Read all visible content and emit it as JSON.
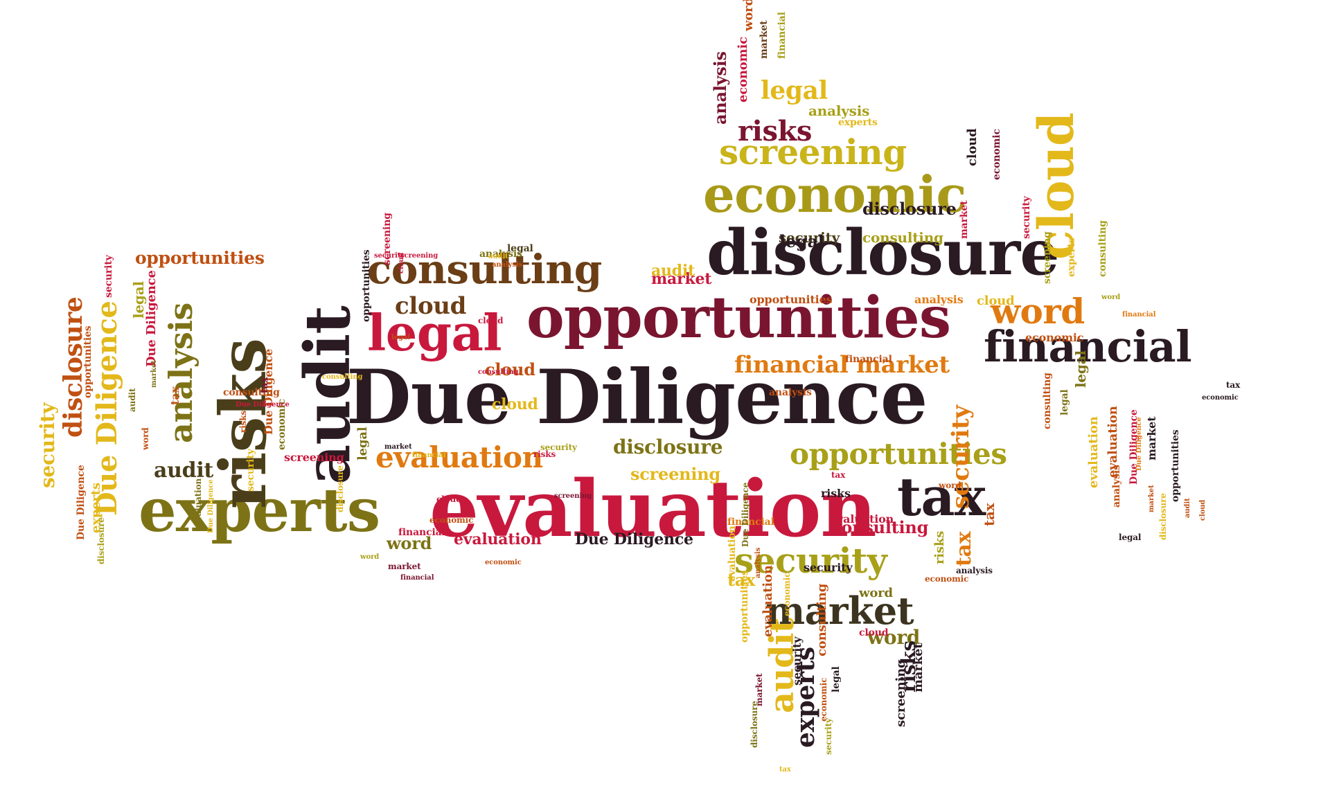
{
  "image": {
    "type": "word cloud",
    "shape": "arrow pointing left",
    "background": "#ffffff",
    "palette": {
      "black": "#2a1a22",
      "crimson": "#c8193d",
      "maroon": "#7a1530",
      "orange": "#e07a10",
      "mustard": "#c9a018",
      "olive": "#7d7316",
      "brown": "#7a4418",
      "yellow": "#e3b81a",
      "dark_olive": "#4a3e1a"
    }
  },
  "words": [
    {
      "text": "Due Diligence",
      "color": "#2a1a22"
    },
    {
      "text": "evaluation",
      "color": "#c8193d"
    },
    {
      "text": "opportunities",
      "color": "#7a1530"
    },
    {
      "text": "disclosure",
      "color": "#2a1a22"
    },
    {
      "text": "economic",
      "color": "#a89a18"
    },
    {
      "text": "screening",
      "color": "#c9b41a"
    },
    {
      "text": "financial",
      "color": "#2a1a22"
    },
    {
      "text": "legal",
      "color": "#c8193d"
    },
    {
      "text": "consulting",
      "color": "#6b3e16"
    },
    {
      "text": "experts",
      "color": "#7d7316"
    },
    {
      "text": "tax",
      "color": "#2a1a22"
    },
    {
      "text": "security",
      "color": "#a8a018"
    },
    {
      "text": "market",
      "color": "#3c3420"
    },
    {
      "text": "word",
      "color": "#e07a10"
    },
    {
      "text": "financial market",
      "color": "#e07a10"
    },
    {
      "text": "audit",
      "color": "#2a1a22"
    },
    {
      "text": "risks",
      "color": "#4a3e1a"
    },
    {
      "text": "analysis",
      "color": "#7d7316"
    },
    {
      "text": "Due Diligence",
      "color": "#e3b81a"
    },
    {
      "text": "disclosure",
      "color": "#c05012"
    },
    {
      "text": "security",
      "color": "#e3b81a"
    },
    {
      "text": "opportunities",
      "color": "#c05012"
    },
    {
      "text": "evaluation",
      "color": "#e07a10"
    },
    {
      "text": "opportunities",
      "color": "#a8a018"
    },
    {
      "text": "legal",
      "color": "#e3b81a"
    },
    {
      "text": "risks",
      "color": "#7a1530"
    },
    {
      "text": "analysis",
      "color": "#7a1530"
    },
    {
      "text": "analysis",
      "color": "#a8a018"
    },
    {
      "text": "economic",
      "color": "#c8193d"
    },
    {
      "text": "word",
      "color": "#c05012"
    },
    {
      "text": "market",
      "color": "#6b3e16"
    },
    {
      "text": "financial",
      "color": "#a8a018"
    },
    {
      "text": "experts",
      "color": "#e3b81a"
    },
    {
      "text": "cloud",
      "color": "#e3b81a"
    },
    {
      "text": "cloud",
      "color": "#6b3e16"
    },
    {
      "text": "cloud",
      "color": "#c05012"
    },
    {
      "text": "market",
      "color": "#c8193d"
    },
    {
      "text": "audit",
      "color": "#e3b81a"
    },
    {
      "text": "audit",
      "color": "#4a3e1a"
    },
    {
      "text": "audit",
      "color": "#e3b81a"
    },
    {
      "text": "disclosure",
      "color": "#7d7316"
    },
    {
      "text": "screening",
      "color": "#e3b81a"
    },
    {
      "text": "evaluation",
      "color": "#c8193d"
    },
    {
      "text": "Due Diligence",
      "color": "#2a1a22"
    },
    {
      "text": "consulting",
      "color": "#c8193d"
    },
    {
      "text": "security",
      "color": "#e07a10"
    },
    {
      "text": "word",
      "color": "#7d7316"
    },
    {
      "text": "risks",
      "color": "#2a1a22"
    },
    {
      "text": "tax",
      "color": "#e07a10"
    },
    {
      "text": "tax",
      "color": "#e3b81a"
    },
    {
      "text": "tax",
      "color": "#c05012"
    },
    {
      "text": "experts",
      "color": "#2a1a22"
    },
    {
      "text": "screening",
      "color": "#2a1a22"
    },
    {
      "text": "market",
      "color": "#2a1a22"
    },
    {
      "text": "word",
      "color": "#7d7316"
    },
    {
      "text": "risks",
      "color": "#a8a018"
    },
    {
      "text": "cloud",
      "color": "#e3b81a"
    },
    {
      "text": "consulting",
      "color": "#a8a018"
    },
    {
      "text": "security",
      "color": "#4a3e1a"
    },
    {
      "text": "analysis",
      "color": "#c05012"
    },
    {
      "text": "opportunities",
      "color": "#c05012"
    },
    {
      "text": "analysis",
      "color": "#e07a10"
    },
    {
      "text": "screening",
      "color": "#a8a018"
    },
    {
      "text": "opportunities",
      "color": "#2a1a22"
    },
    {
      "text": "legal",
      "color": "#4a3e1a"
    },
    {
      "text": "analysis",
      "color": "#7d7316"
    },
    {
      "text": "security",
      "color": "#c8193d"
    },
    {
      "text": "screening",
      "color": "#c8193d"
    },
    {
      "text": "cloud",
      "color": "#e3b81a"
    },
    {
      "text": "financial",
      "color": "#c05012"
    },
    {
      "text": "economic",
      "color": "#c05012"
    },
    {
      "text": "consulting",
      "color": "#c05012"
    },
    {
      "text": "legal",
      "color": "#7d7316"
    },
    {
      "text": "disclosure",
      "color": "#2a1a22"
    },
    {
      "text": "legal",
      "color": "#2a1a22"
    },
    {
      "text": "cloud",
      "color": "#2a1a22"
    },
    {
      "text": "economic",
      "color": "#7a1530"
    },
    {
      "text": "security",
      "color": "#c8193d"
    },
    {
      "text": "experts",
      "color": "#e3b81a"
    },
    {
      "text": "consulting",
      "color": "#a8a018"
    },
    {
      "text": "market",
      "color": "#c8193d"
    },
    {
      "text": "word",
      "color": "#a8a018"
    },
    {
      "text": "financial",
      "color": "#e07a10"
    },
    {
      "text": "legal",
      "color": "#7d7316"
    },
    {
      "text": "evaluation",
      "color": "#e3b81a"
    },
    {
      "text": "evaluation",
      "color": "#c05012"
    },
    {
      "text": "analysis",
      "color": "#c05012"
    },
    {
      "text": "market",
      "color": "#2a1a22"
    },
    {
      "text": "Due Diligence",
      "color": "#c8193d"
    },
    {
      "text": "economic",
      "color": "#2a1a22"
    },
    {
      "text": "tax",
      "color": "#2a1a22"
    },
    {
      "text": "opportunities",
      "color": "#2a1a22"
    },
    {
      "text": "audit",
      "color": "#c05012"
    },
    {
      "text": "cloud",
      "color": "#c05012"
    },
    {
      "text": "market",
      "color": "#c05012"
    },
    {
      "text": "Due Diligence",
      "color": "#e07a10"
    },
    {
      "text": "disclosure",
      "color": "#e3b81a"
    },
    {
      "text": "legal",
      "color": "#2a1a22"
    },
    {
      "text": "word",
      "color": "#c05012"
    },
    {
      "text": "risks",
      "color": "#2a1a22"
    },
    {
      "text": "tax",
      "color": "#c8193d"
    },
    {
      "text": "financial",
      "color": "#e07a10"
    },
    {
      "text": "security",
      "color": "#2a1a22"
    },
    {
      "text": "economic",
      "color": "#c05012"
    },
    {
      "text": "analysis",
      "color": "#2a1a22"
    },
    {
      "text": "word",
      "color": "#7d7316"
    },
    {
      "text": "cloud",
      "color": "#c8193d"
    },
    {
      "text": "evaluation",
      "color": "#c8193d"
    },
    {
      "text": "opportunities",
      "color": "#e3b81a"
    },
    {
      "text": "evaluation",
      "color": "#c05012"
    },
    {
      "text": "security",
      "color": "#2a1a22"
    },
    {
      "text": "consulting",
      "color": "#c05012"
    },
    {
      "text": "economic",
      "color": "#e3b81a"
    },
    {
      "text": "security",
      "color": "#a8a018"
    },
    {
      "text": "tax",
      "color": "#e3b81a"
    },
    {
      "text": "legal",
      "color": "#2a1a22"
    },
    {
      "text": "market",
      "color": "#7a1530"
    },
    {
      "text": "economic",
      "color": "#c05012"
    },
    {
      "text": "disclosure",
      "color": "#7d7316"
    },
    {
      "text": "evaluation",
      "color": "#e3b81a"
    },
    {
      "text": "Due Diligence",
      "color": "#7d7316"
    },
    {
      "text": "analysis",
      "color": "#c05012"
    },
    {
      "text": "cloud",
      "color": "#c8193d"
    },
    {
      "text": "market",
      "color": "#2a1a22"
    },
    {
      "text": "financial",
      "color": "#e3b81a"
    },
    {
      "text": "legal",
      "color": "#7d7316"
    },
    {
      "text": "disclosure",
      "color": "#e3b81a"
    },
    {
      "text": "economic",
      "color": "#7d7316"
    },
    {
      "text": "Due Diligence",
      "color": "#c05012"
    },
    {
      "text": "security",
      "color": "#e3b81a"
    },
    {
      "text": "consulting",
      "color": "#c05012"
    },
    {
      "text": "Due Diligence",
      "color": "#c8193d"
    },
    {
      "text": "tax",
      "color": "#c05012"
    },
    {
      "text": "Due Diligence",
      "color": "#c8193d"
    },
    {
      "text": "audit",
      "color": "#7d7316"
    },
    {
      "text": "word",
      "color": "#c05012"
    },
    {
      "text": "market",
      "color": "#7d7316"
    },
    {
      "text": "legal",
      "color": "#a8a018"
    },
    {
      "text": "security",
      "color": "#c8193d"
    },
    {
      "text": "opportunities",
      "color": "#c05012"
    },
    {
      "text": "experts",
      "color": "#e3b81a"
    },
    {
      "text": "disclosure",
      "color": "#a8a018"
    },
    {
      "text": "Due Diligence",
      "color": "#c05012"
    },
    {
      "text": "evaluation",
      "color": "#7d7316"
    },
    {
      "text": "Due Diligence",
      "color": "#e3b81a"
    },
    {
      "text": "risks",
      "color": "#c05012"
    },
    {
      "text": "tax",
      "color": "#7a1530"
    },
    {
      "text": "screening",
      "color": "#c8193d"
    },
    {
      "text": "consulting",
      "color": "#e3b81a"
    },
    {
      "text": "audit",
      "color": "#e3b81a"
    },
    {
      "text": "analysis",
      "color": "#c05012"
    },
    {
      "text": "cloud",
      "color": "#c8193d"
    },
    {
      "text": "screening",
      "color": "#c8193d"
    },
    {
      "text": "legal",
      "color": "#c05012"
    },
    {
      "text": "cloud",
      "color": "#c8193d"
    },
    {
      "text": "consulting",
      "color": "#c8193d"
    },
    {
      "text": "economic",
      "color": "#c05012"
    },
    {
      "text": "financial",
      "color": "#c8193d"
    },
    {
      "text": "security",
      "color": "#a8a018"
    },
    {
      "text": "risks",
      "color": "#c8193d"
    },
    {
      "text": "screening",
      "color": "#7a1530"
    },
    {
      "text": "word",
      "color": "#a8a018"
    },
    {
      "text": "market",
      "color": "#7a1530"
    },
    {
      "text": "financial",
      "color": "#7a1530"
    },
    {
      "text": "economic",
      "color": "#c05012"
    },
    {
      "text": "disclosure",
      "color": "#7d7316"
    },
    {
      "text": "opportunities",
      "color": "#7d7316"
    },
    {
      "text": "analysis",
      "color": "#a8a018"
    },
    {
      "text": "audit",
      "color": "#c8193d"
    }
  ]
}
